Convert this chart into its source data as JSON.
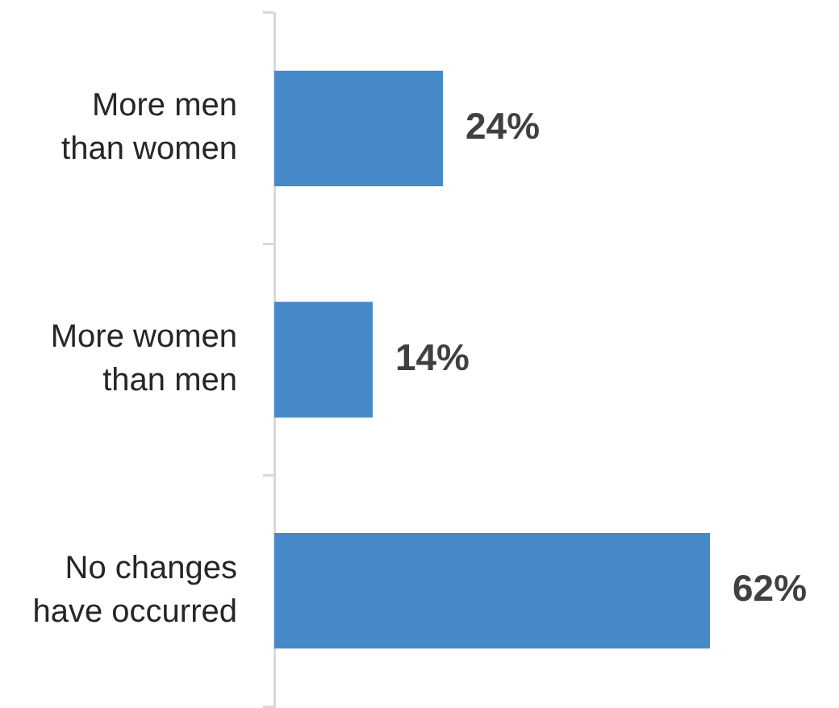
{
  "chart_data": {
    "type": "bar",
    "orientation": "horizontal",
    "categories": [
      "More men than women",
      "More women than men",
      "No changes have occurred"
    ],
    "values": [
      24,
      14,
      62
    ],
    "color": "#4589c8",
    "value_labels": [
      "24%",
      "14%",
      "62%"
    ]
  }
}
